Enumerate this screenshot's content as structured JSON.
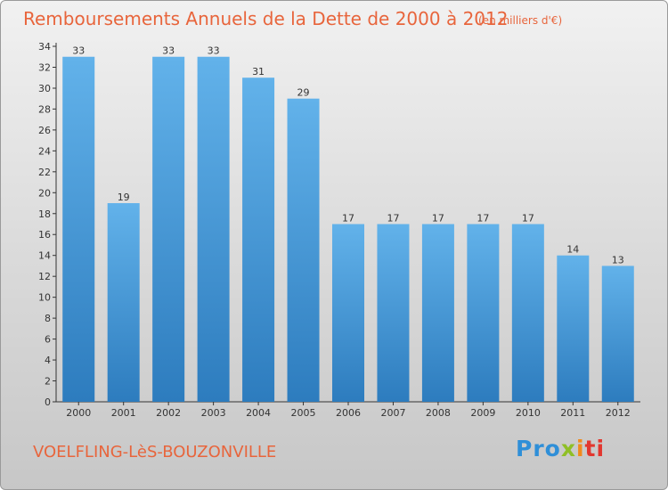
{
  "title": "Remboursements Annuels de la Dette de 2000 à 2012",
  "subtitle": "(en milliers d'€)",
  "commune": "VOELFLING-LèS-BOUZONVILLE",
  "logo": {
    "text": "Proxiti",
    "parts": [
      "Pro",
      "x",
      "i",
      "ti"
    ]
  },
  "colors": {
    "bar_light": "#5eaee7",
    "bar_dark": "#2f7fc1",
    "title": "#e8653c",
    "axis": "#333333"
  },
  "chart_data": {
    "type": "bar",
    "categories": [
      "2000",
      "2001",
      "2002",
      "2003",
      "2004",
      "2005",
      "2006",
      "2007",
      "2008",
      "2009",
      "2010",
      "2011",
      "2012"
    ],
    "values": [
      33,
      19,
      33,
      33,
      31,
      29,
      17,
      17,
      17,
      17,
      17,
      14,
      13
    ],
    "data_labels": [
      "33",
      "19",
      "33",
      "33",
      "31",
      "29",
      "17",
      "17",
      "17",
      "17",
      "17",
      "14",
      "13"
    ],
    "yticks": [
      0,
      2,
      4,
      6,
      8,
      10,
      12,
      14,
      16,
      18,
      20,
      22,
      24,
      26,
      28,
      30,
      32,
      34
    ],
    "ylim": [
      0,
      34
    ],
    "xlabel": "",
    "ylabel": "",
    "grid": false,
    "legend": "none"
  }
}
